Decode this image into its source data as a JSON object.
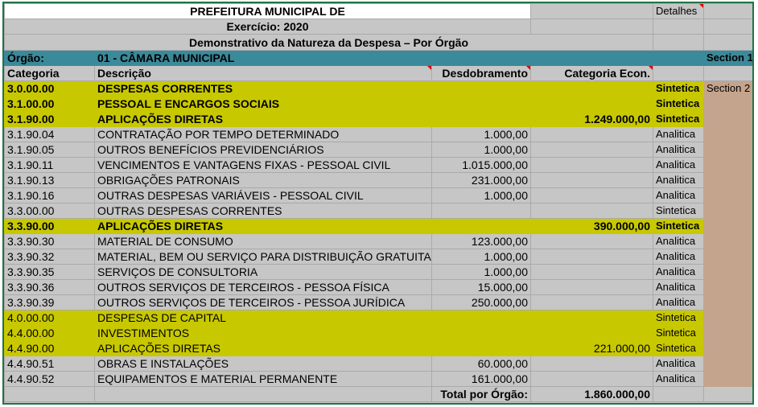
{
  "header": {
    "title": "PREFEITURA MUNICIPAL DE",
    "details": "Detalhes",
    "exercicio": "Exercício: 2020",
    "subtitle": "Demonstrativo da Natureza da Despesa – Por Órgão"
  },
  "orgao": {
    "label": "Órgão:",
    "value": "01 - CÂMARA MUNICIPAL",
    "section": "Section 1"
  },
  "columns": {
    "categoria": "Categoria",
    "descricao": "Descrição",
    "desdobramento": "Desdobramento",
    "categoria_econ": "Categoria  Econ."
  },
  "section2": "Section 2",
  "colors": {
    "teal": "#3b8a9b",
    "yellow": "#c8c800",
    "brown": "#c4a48c",
    "gray": "#c6c6c6"
  },
  "rows": [
    {
      "cat": "3.0.00.00",
      "desc": "DESPESAS CORRENTES",
      "desd": "",
      "econ": "",
      "tipo": "Sintetica",
      "style": "yellow-bold"
    },
    {
      "cat": "3.1.00.00",
      "desc": "PESSOAL E ENCARGOS SOCIAIS",
      "desd": "",
      "econ": "",
      "tipo": "Sintetica",
      "style": "yellow-bold"
    },
    {
      "cat": "3.1.90.00",
      "desc": "APLICAÇÕES DIRETAS",
      "desd": "",
      "econ": "1.249.000,00",
      "tipo": "Sintetica",
      "style": "yellow-bold"
    },
    {
      "cat": "3.1.90.04",
      "desc": "CONTRATAÇÃO POR TEMPO DETERMINADO",
      "desd": "1.000,00",
      "econ": "",
      "tipo": "Analitica",
      "style": "plain"
    },
    {
      "cat": "3.1.90.05",
      "desc": "OUTROS BENEFÍCIOS PREVIDENCIÁRIOS",
      "desd": "1.000,00",
      "econ": "",
      "tipo": "Analitica",
      "style": "plain"
    },
    {
      "cat": "3.1.90.11",
      "desc": "VENCIMENTOS E VANTAGENS FIXAS -  PESSOAL CIVIL",
      "desd": "1.015.000,00",
      "econ": "",
      "tipo": "Analitica",
      "style": "plain"
    },
    {
      "cat": "3.1.90.13",
      "desc": "OBRIGAÇÕES PATRONAIS",
      "desd": "231.000,00",
      "econ": "",
      "tipo": "Analitica",
      "style": "plain"
    },
    {
      "cat": "3.1.90.16",
      "desc": "OUTRAS DESPESAS VARIÁVEIS - PESSOAL CIVIL",
      "desd": "1.000,00",
      "econ": "",
      "tipo": "Analitica",
      "style": "plain"
    },
    {
      "cat": "3.3.00.00",
      "desc": "OUTRAS DESPESAS CORRENTES",
      "desd": "",
      "econ": "",
      "tipo": "Sintetica",
      "style": "plain"
    },
    {
      "cat": "3.3.90.00",
      "desc": "APLICAÇÕES DIRETAS",
      "desd": "",
      "econ": "390.000,00",
      "tipo": "Sintetica",
      "style": "yellow-bold"
    },
    {
      "cat": "3.3.90.30",
      "desc": "MATERIAL DE CONSUMO",
      "desd": "123.000,00",
      "econ": "",
      "tipo": "Analitica",
      "style": "plain"
    },
    {
      "cat": "3.3.90.32",
      "desc": "MATERIAL, BEM OU SERVIÇO PARA DISTRIBUIÇÃO GRATUITA",
      "desd": "1.000,00",
      "econ": "",
      "tipo": "Analitica",
      "style": "plain"
    },
    {
      "cat": "3.3.90.35",
      "desc": "SERVIÇOS DE CONSULTORIA",
      "desd": "1.000,00",
      "econ": "",
      "tipo": "Analitica",
      "style": "plain"
    },
    {
      "cat": "3.3.90.36",
      "desc": "OUTROS SERVIÇOS DE TERCEIROS - PESSOA FÍSICA",
      "desd": "15.000,00",
      "econ": "",
      "tipo": "Analitica",
      "style": "plain"
    },
    {
      "cat": "3.3.90.39",
      "desc": "OUTROS SERVIÇOS DE TERCEIROS -  PESSOA JURÍDICA",
      "desd": "250.000,00",
      "econ": "",
      "tipo": "Analitica",
      "style": "plain"
    },
    {
      "cat": "4.0.00.00",
      "desc": "DESPESAS DE CAPITAL",
      "desd": "",
      "econ": "",
      "tipo": "Sintetica",
      "style": "yellow"
    },
    {
      "cat": "4.4.00.00",
      "desc": "INVESTIMENTOS",
      "desd": "",
      "econ": "",
      "tipo": "Sintetica",
      "style": "yellow"
    },
    {
      "cat": "4.4.90.00",
      "desc": "APLICAÇÕES DIRETAS",
      "desd": "",
      "econ": "221.000,00",
      "tipo": "Sintetica",
      "style": "yellow"
    },
    {
      "cat": "4.4.90.51",
      "desc": "OBRAS E INSTALAÇÕES",
      "desd": "60.000,00",
      "econ": "",
      "tipo": "Analitica",
      "style": "plain"
    },
    {
      "cat": "4.4.90.52",
      "desc": "EQUIPAMENTOS E MATERIAL PERMANENTE",
      "desd": "161.000,00",
      "econ": "",
      "tipo": "Analitica",
      "style": "plain"
    }
  ],
  "total": {
    "label": "Total por Órgão:",
    "value": "1.860.000,00"
  }
}
